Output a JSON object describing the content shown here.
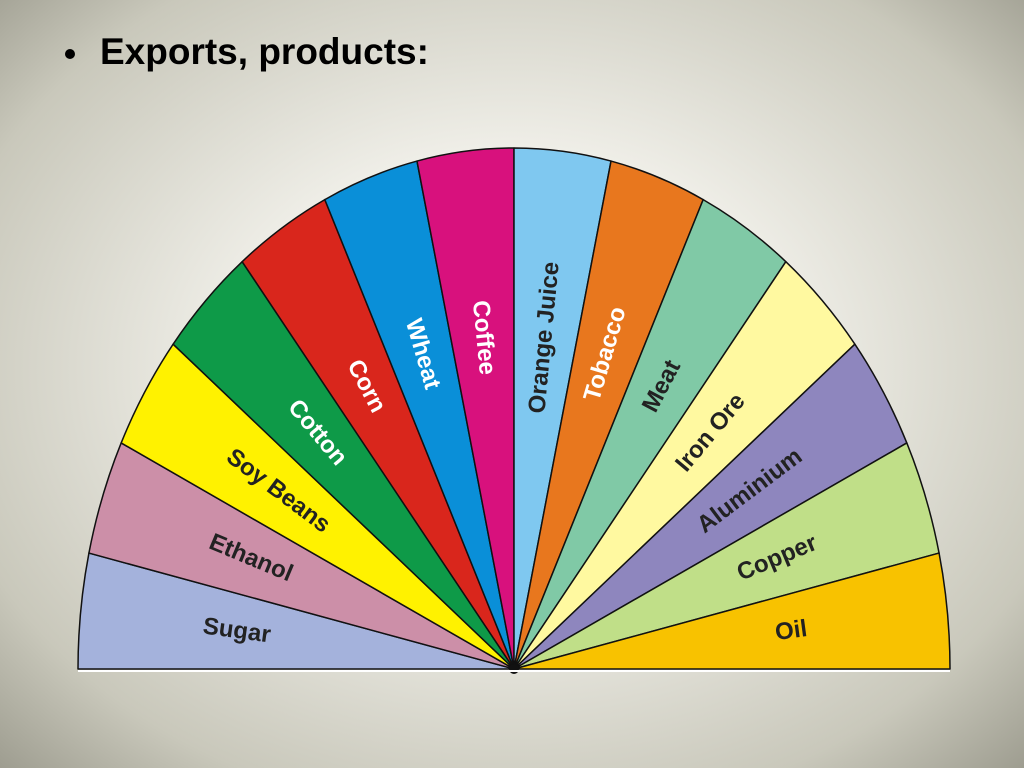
{
  "header": {
    "title": "Exports, products:"
  },
  "diagram": {
    "segments": [
      {
        "label": "Sugar",
        "color": "#a4b2dc",
        "text_color": "#222222"
      },
      {
        "label": "Ethanol",
        "color": "#cc8fa8",
        "text_color": "#222222"
      },
      {
        "label": "Soy Beans",
        "color": "#fff200",
        "text_color": "#222222"
      },
      {
        "label": "Cotton",
        "color": "#0e9a48",
        "text_color": "#ffffff"
      },
      {
        "label": "Corn",
        "color": "#d9261c",
        "text_color": "#ffffff"
      },
      {
        "label": "Wheat",
        "color": "#0a8fd8",
        "text_color": "#ffffff"
      },
      {
        "label": "Coffee",
        "color": "#d8117d",
        "text_color": "#ffffff"
      },
      {
        "label": "Orange Juice",
        "color": "#7fc8f0",
        "text_color": "#222222"
      },
      {
        "label": "Tobacco",
        "color": "#e8771e",
        "text_color": "#ffffff"
      },
      {
        "label": "Meat",
        "color": "#80c9a6",
        "text_color": "#222222"
      },
      {
        "label": "Iron Ore",
        "color": "#fff9a0",
        "text_color": "#222222"
      },
      {
        "label": "Aluminium",
        "color": "#8e86be",
        "text_color": "#222222"
      },
      {
        "label": "Copper",
        "color": "#c0df88",
        "text_color": "#222222"
      },
      {
        "label": "Oil",
        "color": "#f8c200",
        "text_color": "#222222"
      }
    ]
  }
}
